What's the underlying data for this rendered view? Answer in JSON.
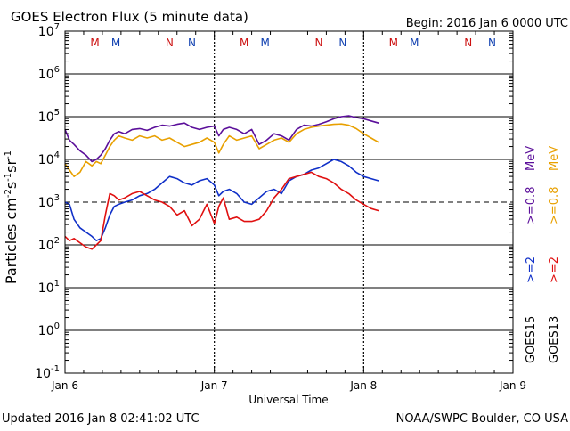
{
  "header": {
    "title": "GOES Electron Flux (5 minute data)",
    "begin": "Begin: 2016 Jan 6 0000 UTC"
  },
  "footer": {
    "updated": "Updated 2016 Jan  8 02:41:02 UTC",
    "credit": "NOAA/SWPC Boulder, CO USA"
  },
  "colors": {
    "goes15_08": "#5b0f9a",
    "goes13_08": "#e8a000",
    "goes15_2": "#1030c8",
    "goes13_2": "#e01010",
    "marker_m": "#cc1010",
    "marker_n_red": "#cc1010",
    "marker_n_blue": "#1040b0"
  },
  "chart_data": {
    "type": "line",
    "title": "GOES Electron Flux (5 minute data)",
    "xlabel": "Universal Time",
    "ylabel": "Particles cm^-2 s^-1 sr^-1",
    "x_unit": "days since 2016 Jan 6 0000 UTC",
    "xlim": [
      0,
      3
    ],
    "ylim_log10": [
      -1,
      7
    ],
    "y_scale": "log",
    "x_ticks": [
      {
        "label": "Jan 6",
        "value": 0
      },
      {
        "label": "Jan 7",
        "value": 1
      },
      {
        "label": "Jan 8",
        "value": 2
      },
      {
        "label": "Jan 9",
        "value": 3
      }
    ],
    "y_ticks": [
      {
        "base": "10",
        "exp": "7",
        "value": 7
      },
      {
        "base": "10",
        "exp": "6",
        "value": 6
      },
      {
        "base": "10",
        "exp": "5",
        "value": 5
      },
      {
        "base": "10",
        "exp": "4",
        "value": 4
      },
      {
        "base": "10",
        "exp": "3",
        "value": 3
      },
      {
        "base": "10",
        "exp": "2",
        "value": 2
      },
      {
        "base": "10",
        "exp": "1",
        "value": 1
      },
      {
        "base": "10",
        "exp": "0",
        "value": 0
      },
      {
        "base": "10",
        "exp": "-1",
        "value": -1
      }
    ],
    "threshold_log10": 3,
    "legend": {
      "placement": "right",
      "ylabel_parts": [
        "Particles cm",
        "-2",
        "s",
        "-1",
        "sr",
        "-1"
      ],
      "mev": [
        "MeV",
        "MeV"
      ],
      "thresholds": [
        ">=0.8",
        ">=0.8",
        ">=2",
        ">=2"
      ],
      "satellites": [
        "GOES15",
        "GOES13"
      ]
    },
    "markers": [
      {
        "label": "M",
        "x": 0.2,
        "color_key": "marker_m"
      },
      {
        "label": "M",
        "x": 0.34,
        "color_key": "marker_n_blue"
      },
      {
        "label": "N",
        "x": 0.7,
        "color_key": "marker_n_red"
      },
      {
        "label": "N",
        "x": 0.85,
        "color_key": "marker_n_blue"
      },
      {
        "label": "M",
        "x": 1.2,
        "color_key": "marker_m"
      },
      {
        "label": "M",
        "x": 1.34,
        "color_key": "marker_n_blue"
      },
      {
        "label": "N",
        "x": 1.7,
        "color_key": "marker_n_red"
      },
      {
        "label": "N",
        "x": 1.86,
        "color_key": "marker_n_blue"
      },
      {
        "label": "M",
        "x": 2.2,
        "color_key": "marker_m"
      },
      {
        "label": "M",
        "x": 2.34,
        "color_key": "marker_n_blue"
      },
      {
        "label": "N",
        "x": 2.7,
        "color_key": "marker_n_red"
      },
      {
        "label": "N",
        "x": 2.86,
        "color_key": "marker_n_blue"
      }
    ],
    "midnight_lines_x": [
      1,
      2
    ],
    "series": [
      {
        "name": "GOES15 >=0.8 MeV",
        "color_key": "goes15_08",
        "x": [
          0,
          0.03,
          0.06,
          0.1,
          0.14,
          0.18,
          0.21,
          0.24,
          0.27,
          0.3,
          0.33,
          0.36,
          0.4,
          0.45,
          0.5,
          0.55,
          0.6,
          0.65,
          0.7,
          0.75,
          0.8,
          0.85,
          0.9,
          0.95,
          1.0,
          1.03,
          1.06,
          1.1,
          1.15,
          1.2,
          1.25,
          1.3,
          1.35,
          1.4,
          1.45,
          1.5,
          1.55,
          1.6,
          1.65,
          1.7,
          1.75,
          1.8,
          1.85,
          1.9,
          1.95,
          2.0,
          2.05,
          2.1
        ],
        "values": [
          4.7,
          4.45,
          4.35,
          4.2,
          4.1,
          3.95,
          4.0,
          4.1,
          4.25,
          4.45,
          4.6,
          4.65,
          4.6,
          4.7,
          4.72,
          4.68,
          4.75,
          4.8,
          4.78,
          4.82,
          4.85,
          4.75,
          4.7,
          4.75,
          4.78,
          4.55,
          4.7,
          4.75,
          4.7,
          4.6,
          4.7,
          4.35,
          4.45,
          4.6,
          4.55,
          4.45,
          4.7,
          4.8,
          4.78,
          4.82,
          4.88,
          4.95,
          5.0,
          5.02,
          4.98,
          4.95,
          4.9,
          4.85
        ]
      },
      {
        "name": "GOES13 >=0.8 MeV",
        "color_key": "goes13_08",
        "x": [
          0,
          0.03,
          0.06,
          0.1,
          0.14,
          0.18,
          0.21,
          0.24,
          0.27,
          0.3,
          0.33,
          0.36,
          0.4,
          0.45,
          0.5,
          0.55,
          0.6,
          0.65,
          0.7,
          0.75,
          0.8,
          0.85,
          0.9,
          0.95,
          1.0,
          1.03,
          1.06,
          1.1,
          1.15,
          1.2,
          1.25,
          1.3,
          1.35,
          1.4,
          1.45,
          1.5,
          1.55,
          1.6,
          1.65,
          1.7,
          1.75,
          1.8,
          1.85,
          1.9,
          1.95,
          2.0,
          2.05,
          2.1
        ],
        "values": [
          3.9,
          3.75,
          3.6,
          3.7,
          3.95,
          3.85,
          3.95,
          3.9,
          4.1,
          4.3,
          4.45,
          4.55,
          4.5,
          4.45,
          4.55,
          4.5,
          4.55,
          4.45,
          4.5,
          4.4,
          4.3,
          4.35,
          4.4,
          4.5,
          4.4,
          4.15,
          4.35,
          4.55,
          4.45,
          4.5,
          4.55,
          4.25,
          4.35,
          4.45,
          4.5,
          4.4,
          4.6,
          4.7,
          4.75,
          4.78,
          4.8,
          4.82,
          4.83,
          4.8,
          4.72,
          4.6,
          4.5,
          4.4
        ]
      },
      {
        "name": "GOES15 >=2 MeV",
        "color_key": "goes15_2",
        "x": [
          0,
          0.03,
          0.06,
          0.1,
          0.14,
          0.18,
          0.21,
          0.24,
          0.27,
          0.3,
          0.33,
          0.36,
          0.4,
          0.45,
          0.5,
          0.55,
          0.6,
          0.65,
          0.7,
          0.75,
          0.8,
          0.85,
          0.9,
          0.95,
          1.0,
          1.03,
          1.06,
          1.1,
          1.15,
          1.2,
          1.25,
          1.3,
          1.35,
          1.4,
          1.45,
          1.5,
          1.55,
          1.6,
          1.65,
          1.7,
          1.75,
          1.8,
          1.85,
          1.9,
          1.95,
          2.0,
          2.05,
          2.1
        ],
        "values": [
          3.0,
          2.95,
          2.6,
          2.4,
          2.3,
          2.2,
          2.1,
          2.15,
          2.4,
          2.7,
          2.9,
          2.95,
          3.0,
          3.05,
          3.15,
          3.2,
          3.3,
          3.45,
          3.6,
          3.55,
          3.45,
          3.4,
          3.5,
          3.55,
          3.4,
          3.15,
          3.25,
          3.3,
          3.2,
          3.0,
          2.95,
          3.1,
          3.25,
          3.3,
          3.2,
          3.5,
          3.6,
          3.65,
          3.75,
          3.8,
          3.9,
          4.0,
          3.95,
          3.85,
          3.7,
          3.6,
          3.55,
          3.5
        ]
      },
      {
        "name": "GOES13 >=2 MeV",
        "color_key": "goes13_2",
        "x": [
          0,
          0.03,
          0.06,
          0.1,
          0.14,
          0.18,
          0.21,
          0.24,
          0.27,
          0.3,
          0.33,
          0.36,
          0.4,
          0.45,
          0.5,
          0.55,
          0.6,
          0.65,
          0.7,
          0.75,
          0.8,
          0.85,
          0.9,
          0.95,
          1.0,
          1.03,
          1.06,
          1.1,
          1.15,
          1.2,
          1.25,
          1.3,
          1.35,
          1.4,
          1.45,
          1.5,
          1.55,
          1.6,
          1.65,
          1.7,
          1.75,
          1.8,
          1.85,
          1.9,
          1.95,
          2.0,
          2.05,
          2.1
        ],
        "values": [
          2.2,
          2.1,
          2.15,
          2.05,
          1.95,
          1.9,
          2.0,
          2.1,
          2.7,
          3.2,
          3.15,
          3.05,
          3.1,
          3.2,
          3.25,
          3.15,
          3.05,
          3.0,
          2.9,
          2.7,
          2.8,
          2.45,
          2.6,
          2.95,
          2.5,
          2.9,
          3.1,
          2.6,
          2.65,
          2.55,
          2.55,
          2.6,
          2.8,
          3.1,
          3.3,
          3.55,
          3.6,
          3.65,
          3.7,
          3.6,
          3.55,
          3.45,
          3.3,
          3.2,
          3.05,
          2.95,
          2.85,
          2.8
        ]
      }
    ]
  }
}
